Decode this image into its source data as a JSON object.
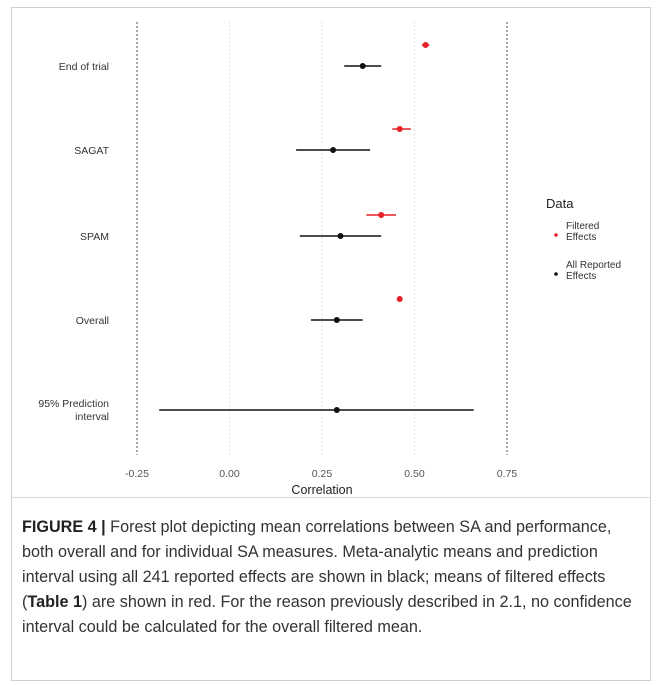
{
  "chart_data": {
    "type": "forest",
    "xlabel": "Correlation",
    "xlim": [
      -0.25,
      0.75
    ],
    "xticks": [
      "-0.25",
      "0.00",
      "0.25",
      "0.50",
      "0.75"
    ],
    "xtick_values": [
      -0.25,
      0.0,
      0.25,
      0.5,
      0.75
    ],
    "grid": "vertical dotted lines at each x tick",
    "categories": [
      "End of trial",
      "SAGAT",
      "SPAM",
      "Overall",
      "95% Prediction\ninterval"
    ],
    "legend": {
      "title": "Data",
      "placement": "right",
      "entries": [
        {
          "label": "Filtered\nEffects",
          "color": "#e8202a"
        },
        {
          "label": "All Reported\nEffects",
          "color": "#111111"
        }
      ]
    },
    "series": [
      {
        "name": "Filtered Effects",
        "color": "#e8202a",
        "points": [
          {
            "category": "End of trial",
            "mean": 0.53,
            "lo": 0.52,
            "hi": 0.54
          },
          {
            "category": "SAGAT",
            "mean": 0.46,
            "lo": 0.44,
            "hi": 0.49
          },
          {
            "category": "SPAM",
            "mean": 0.41,
            "lo": 0.37,
            "hi": 0.45
          },
          {
            "category": "Overall",
            "mean": 0.46,
            "lo": null,
            "hi": null
          }
        ]
      },
      {
        "name": "All Reported Effects",
        "color": "#111111",
        "points": [
          {
            "category": "End of trial",
            "mean": 0.36,
            "lo": 0.31,
            "hi": 0.41
          },
          {
            "category": "SAGAT",
            "mean": 0.28,
            "lo": 0.18,
            "hi": 0.38
          },
          {
            "category": "SPAM",
            "mean": 0.3,
            "lo": 0.19,
            "hi": 0.41
          },
          {
            "category": "Overall",
            "mean": 0.29,
            "lo": 0.22,
            "hi": 0.36
          },
          {
            "category": "95% Prediction\ninterval",
            "mean": 0.29,
            "lo": -0.19,
            "hi": 0.66
          }
        ]
      }
    ]
  },
  "caption": {
    "label": "FIGURE 4 |",
    "text_part1": " Forest plot depicting mean correlations between SA and performance, both overall and for individual SA measures. Meta-analytic means and prediction interval using all 241 reported effects are shown in black; means of filtered effects (",
    "table_ref": "Table 1",
    "text_part2": ") are shown in red. For the reason previously described in 2.1, no confidence interval could be calculated for the overall filtered mean."
  }
}
